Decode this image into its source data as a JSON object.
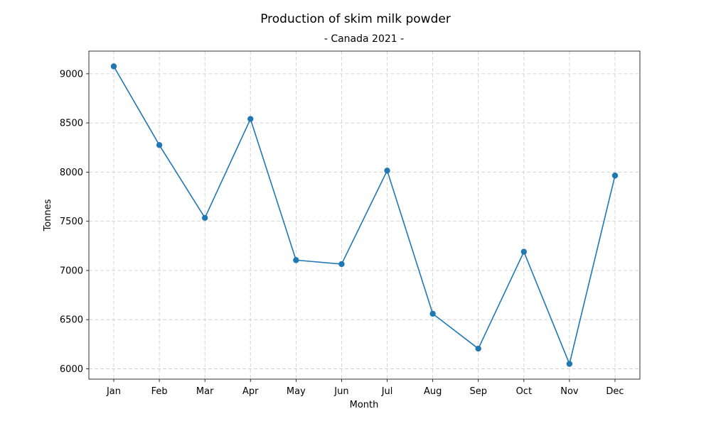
{
  "chart_data": {
    "type": "line",
    "title": "Production of skim milk powder",
    "subtitle": "- Canada 2021 -",
    "xlabel": "Month",
    "ylabel": "Tonnes",
    "categories": [
      "Jan",
      "Feb",
      "Mar",
      "Apr",
      "May",
      "Jun",
      "Jul",
      "Aug",
      "Sep",
      "Oct",
      "Nov",
      "Dec"
    ],
    "series": [
      {
        "values": [
          9075,
          8275,
          7535,
          8540,
          7105,
          7065,
          8015,
          6560,
          6205,
          7190,
          6050,
          7965
        ],
        "color": "#1f77b4",
        "marker": "circle"
      }
    ],
    "ylim": [
      5895,
      9230
    ],
    "yticks": [
      6000,
      6500,
      7000,
      7500,
      8000,
      8500,
      9000
    ],
    "grid": true,
    "legend": "none"
  }
}
